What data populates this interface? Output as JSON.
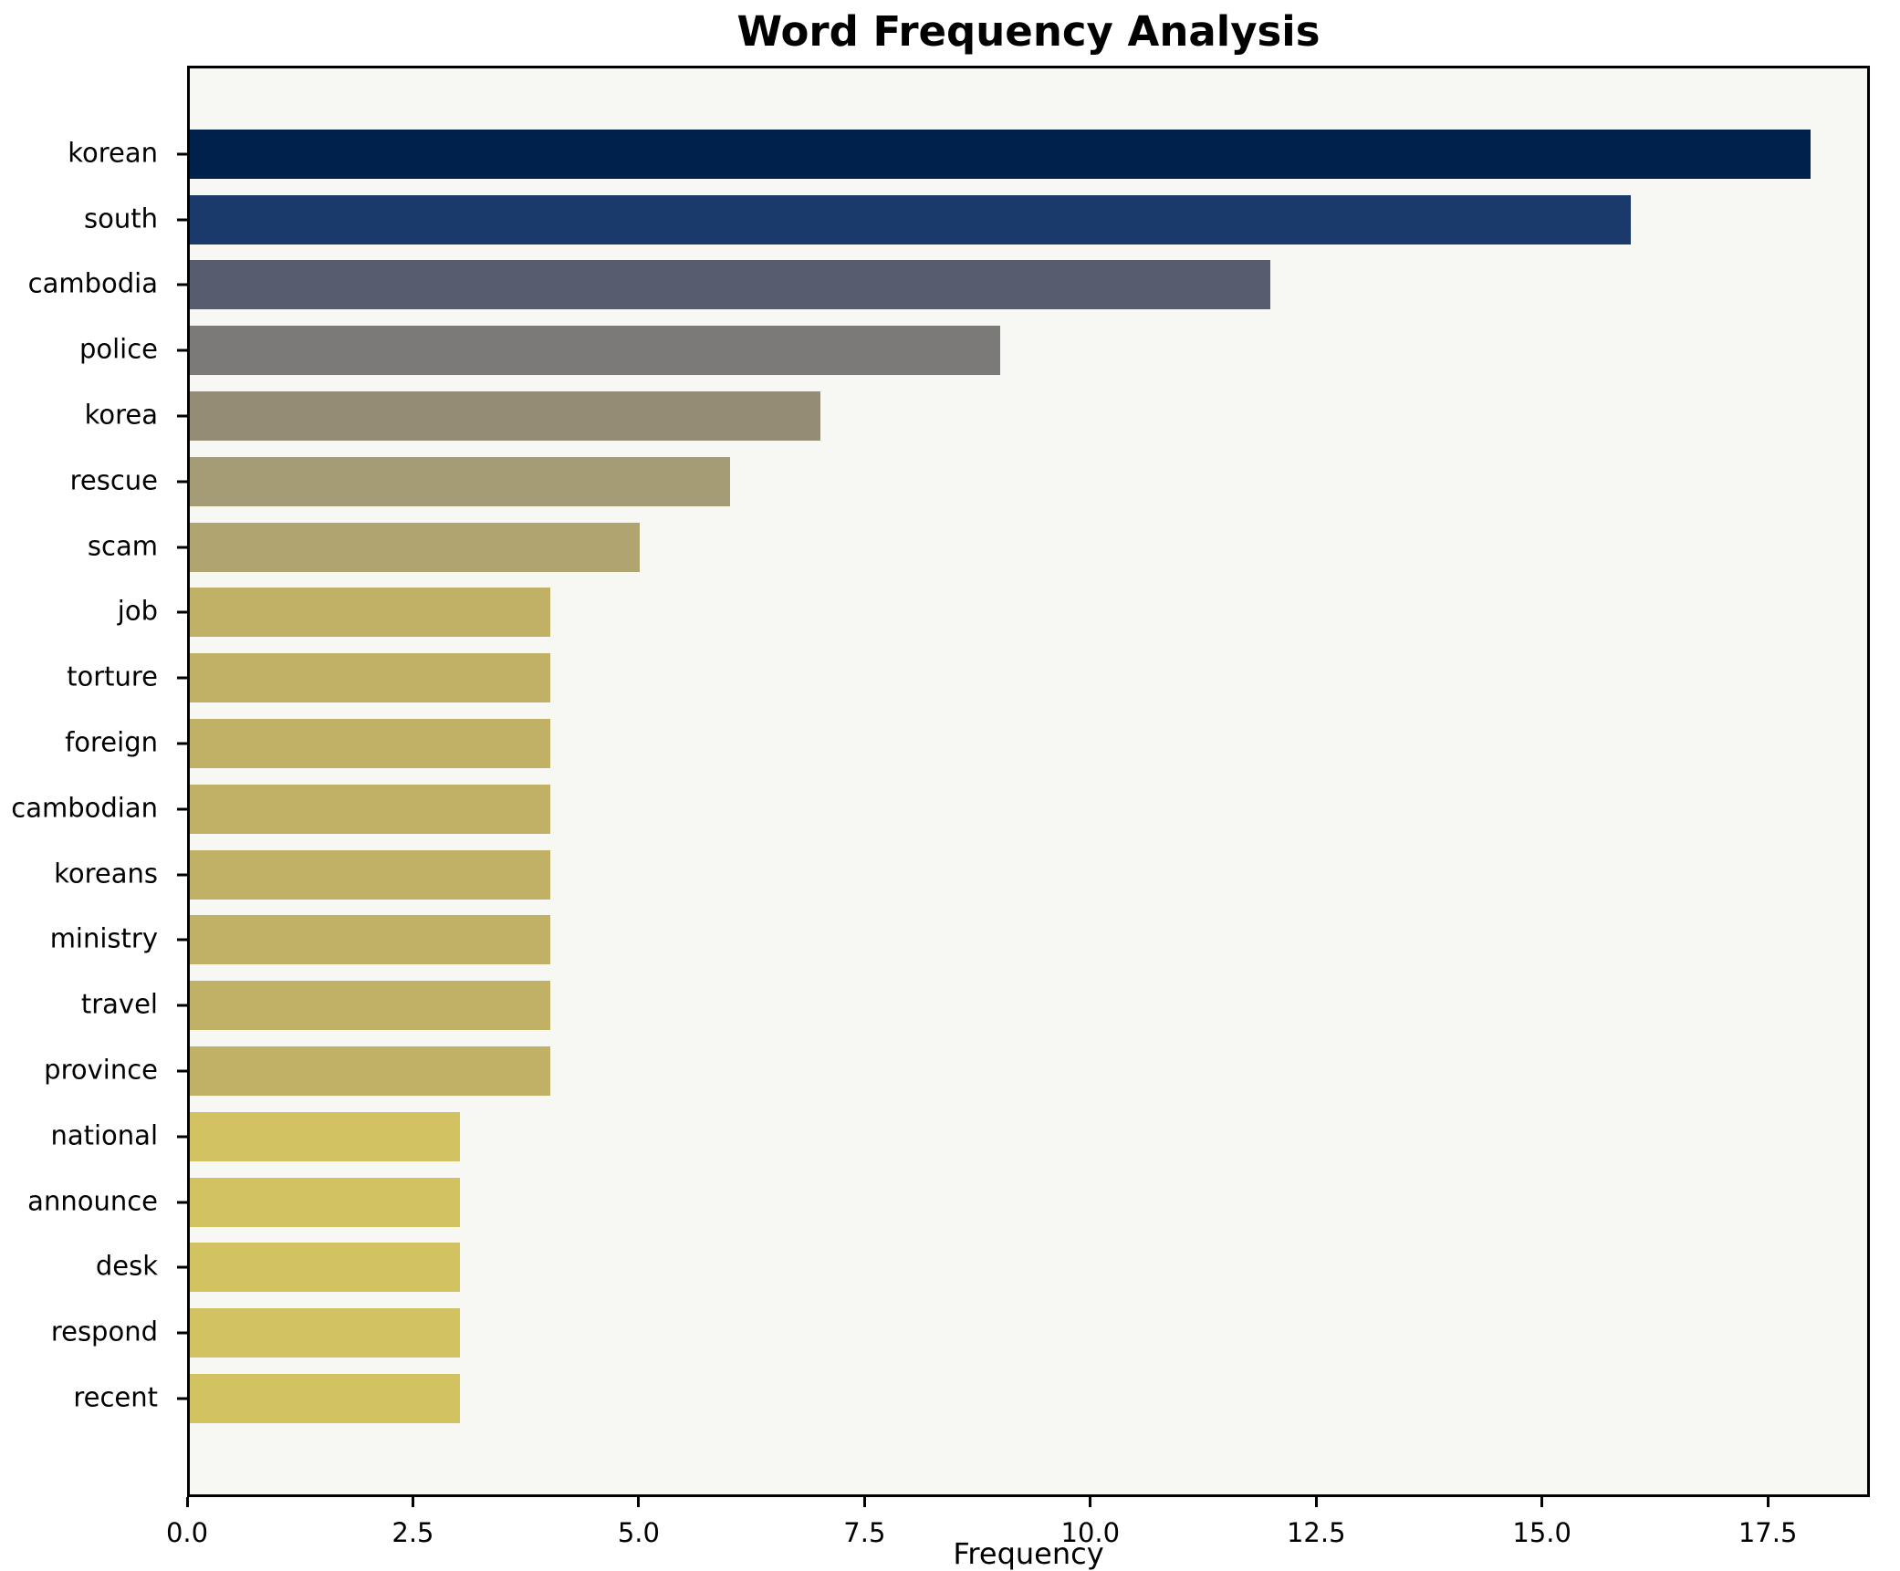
{
  "chart_data": {
    "type": "bar",
    "orientation": "horizontal",
    "title": "Word Frequency Analysis",
    "xlabel": "Frequency",
    "ylabel": "",
    "categories": [
      "korean",
      "south",
      "cambodia",
      "police",
      "korea",
      "rescue",
      "scam",
      "job",
      "torture",
      "foreign",
      "cambodian",
      "koreans",
      "ministry",
      "travel",
      "province",
      "national",
      "announce",
      "desk",
      "respond",
      "recent"
    ],
    "values": [
      18,
      16,
      12,
      9,
      7,
      6,
      5,
      4,
      4,
      4,
      4,
      4,
      4,
      4,
      4,
      3,
      3,
      3,
      3,
      3
    ],
    "bar_colors": [
      "#01214d",
      "#1a3a6c",
      "#575d6e",
      "#7b7a78",
      "#948d74",
      "#a59b74",
      "#b0a471",
      "#c1b167",
      "#c1b167",
      "#c1b167",
      "#c1b167",
      "#c1b167",
      "#c1b167",
      "#c1b167",
      "#c1b167",
      "#d2c261",
      "#d2c261",
      "#d2c261",
      "#d2c261",
      "#d2c261"
    ],
    "xlim": [
      0,
      18.63
    ],
    "x_ticks": [
      {
        "value": 0,
        "label": "0.0"
      },
      {
        "value": 2.5,
        "label": "2.5"
      },
      {
        "value": 5,
        "label": "5.0"
      },
      {
        "value": 7.5,
        "label": "7.5"
      },
      {
        "value": 10,
        "label": "10.0"
      },
      {
        "value": 12.5,
        "label": "12.5"
      },
      {
        "value": 15,
        "label": "15.0"
      },
      {
        "value": 17.5,
        "label": "17.5"
      }
    ],
    "grid": false,
    "legend_position": "none",
    "plot_background": "#f7f7f4",
    "figure_background": "#ffffff",
    "spine_color": "#000000"
  }
}
